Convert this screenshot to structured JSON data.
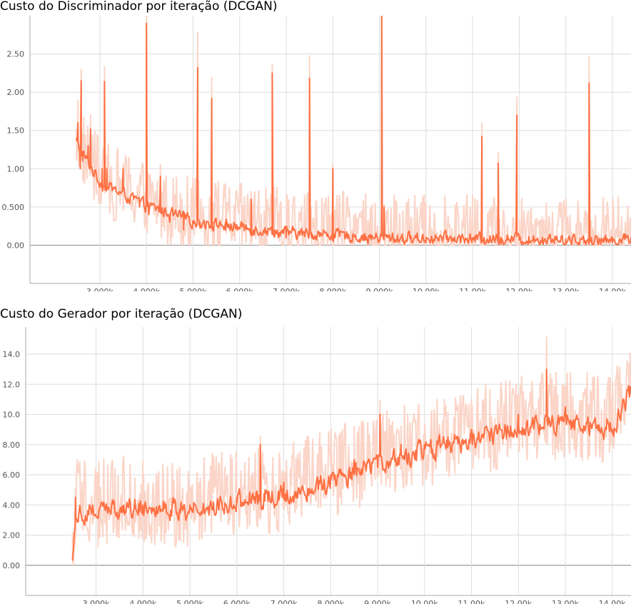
{
  "chart_data": [
    {
      "type": "line",
      "title": "Custo do Discriminador por iteração (DCGAN)",
      "xlabel": "",
      "ylabel": "",
      "xlim": [
        1500,
        14400
      ],
      "ylim": [
        -0.5,
        3.0
      ],
      "x_ticks": [
        3000,
        4000,
        5000,
        6000,
        7000,
        8000,
        9000,
        10000,
        11000,
        12000,
        13000,
        14000
      ],
      "x_tick_labels": [
        "3.000k",
        "4.000k",
        "5.000k",
        "6.000k",
        "7.000k",
        "8.000k",
        "9.000k",
        "10.00k",
        "11.00k",
        "12.00k",
        "13.00k",
        "14.00k"
      ],
      "y_ticks": [
        0,
        0.5,
        1.0,
        1.5,
        2.0,
        2.5
      ],
      "y_tick_labels": [
        "0.00",
        "0.500",
        "1.00",
        "1.50",
        "2.00",
        "2.50"
      ],
      "colors": {
        "smoothed": "#ff7043",
        "raw": "#fbd5c8",
        "grid": "#dddddd",
        "zero": "#999999"
      },
      "x_start": 2500,
      "x_end": 14400,
      "end_marker": false,
      "smooth": {
        "base": [
          [
            2500,
            1.3
          ],
          [
            3000,
            0.8
          ],
          [
            4000,
            0.5
          ],
          [
            5000,
            0.3
          ],
          [
            6000,
            0.22
          ],
          [
            7000,
            0.15
          ],
          [
            8000,
            0.12
          ],
          [
            9000,
            0.08
          ],
          [
            10000,
            0.08
          ],
          [
            11000,
            0.07
          ],
          [
            12000,
            0.07
          ],
          [
            13000,
            0.06
          ],
          [
            14000,
            0.05
          ],
          [
            14400,
            0.08
          ]
        ],
        "noise": 0.12,
        "floor": 0.01
      },
      "raw": {
        "noise": 0.5,
        "floor": 0
      },
      "series": [
        {
          "name": "smoothed",
          "points": [
            [
              2500,
              1.4
            ],
            [
              2530,
              1.6
            ],
            [
              2580,
              1.0
            ],
            [
              2600,
              2.15
            ],
            [
              2630,
              1.1
            ],
            [
              2750,
              1.3
            ],
            [
              2800,
              1.52
            ],
            [
              3050,
              1.0
            ],
            [
              3100,
              2.14
            ],
            [
              3150,
              1.0
            ],
            [
              3500,
              1.0
            ],
            [
              3850,
              0.5
            ],
            [
              4000,
              2.9
            ],
            [
              4050,
              0.4
            ],
            [
              4300,
              0.9
            ],
            [
              4500,
              0.3
            ],
            [
              4800,
              0.2
            ],
            [
              5100,
              2.32
            ],
            [
              5150,
              0.3
            ],
            [
              5400,
              1.92
            ],
            [
              5450,
              0.3
            ],
            [
              5700,
              0.2
            ],
            [
              6250,
              0.6
            ],
            [
              6300,
              0.2
            ],
            [
              6700,
              2.25
            ],
            [
              6750,
              0.2
            ],
            [
              7000,
              0.1
            ],
            [
              7500,
              2.18
            ],
            [
              7550,
              0.15
            ],
            [
              8000,
              1.0
            ],
            [
              8050,
              0.1
            ],
            [
              8500,
              0.08
            ],
            [
              9000,
              0.05
            ],
            [
              9050,
              3.0
            ],
            [
              9100,
              0.5
            ],
            [
              9200,
              0.1
            ],
            [
              9500,
              0.05
            ],
            [
              10000,
              0.1
            ],
            [
              11000,
              0.08
            ],
            [
              11200,
              1.42
            ],
            [
              11250,
              0.1
            ],
            [
              11550,
              1.07
            ],
            [
              11600,
              0.1
            ],
            [
              11950,
              1.7
            ],
            [
              12000,
              0.1
            ],
            [
              12500,
              0.1
            ],
            [
              13000,
              0.08
            ],
            [
              13500,
              2.12
            ],
            [
              13550,
              0.1
            ],
            [
              14000,
              0.03
            ],
            [
              14400,
              0.08
            ]
          ]
        }
      ]
    },
    {
      "type": "line",
      "title": "Custo do Gerador por iteração (DCGAN)",
      "xlabel": "",
      "ylabel": "",
      "xlim": [
        1500,
        14400
      ],
      "ylim": [
        -2.0,
        15.8
      ],
      "x_ticks": [
        3000,
        4000,
        5000,
        6000,
        7000,
        8000,
        9000,
        10000,
        11000,
        12000,
        13000,
        14000
      ],
      "x_tick_labels": [
        "3.000k",
        "4.000k",
        "5.000k",
        "6.000k",
        "7.000k",
        "8.000k",
        "9.000k",
        "10.00k",
        "11.00k",
        "12.00k",
        "13.00k",
        "14.00k"
      ],
      "y_ticks": [
        0,
        2,
        4,
        6,
        8,
        10,
        12,
        14
      ],
      "y_tick_labels": [
        "0.00",
        "2.00",
        "4.00",
        "6.00",
        "8.00",
        "10.0",
        "12.0",
        "14.0"
      ],
      "colors": {
        "smoothed": "#ff7043",
        "raw": "#fbd5c8",
        "grid": "#dddddd",
        "zero": "#999999"
      },
      "x_start": 2500,
      "x_end": 14400,
      "end_marker": true,
      "smooth": {
        "base": [
          [
            2500,
            0.5
          ],
          [
            2550,
            3.5
          ],
          [
            3000,
            3.5
          ],
          [
            4000,
            3.8
          ],
          [
            5000,
            3.5
          ],
          [
            6000,
            4.2
          ],
          [
            7000,
            4.5
          ],
          [
            8000,
            5.5
          ],
          [
            9000,
            6.5
          ],
          [
            10000,
            7.5
          ],
          [
            11000,
            8.2
          ],
          [
            12000,
            9.0
          ],
          [
            13000,
            9.5
          ],
          [
            14000,
            9.0
          ],
          [
            14400,
            11.7
          ]
        ],
        "noise": 1.1,
        "floor": 0.3
      },
      "raw": {
        "noise": 3.0,
        "floor": 0
      },
      "series": [
        {
          "name": "smoothed",
          "points": [
            [
              2500,
              0.5
            ],
            [
              2560,
              4.5
            ],
            [
              3000,
              3.2
            ],
            [
              3500,
              3.5
            ],
            [
              4000,
              4.0
            ],
            [
              4500,
              3.5
            ],
            [
              5000,
              4.0
            ],
            [
              5500,
              4.2
            ],
            [
              6000,
              4.5
            ],
            [
              6500,
              8.0
            ],
            [
              6600,
              5.0
            ],
            [
              7000,
              5.5
            ],
            [
              7500,
              4.5
            ],
            [
              8000,
              6.0
            ],
            [
              8500,
              7.0
            ],
            [
              9000,
              6.5
            ],
            [
              9050,
              10.0
            ],
            [
              9500,
              8.0
            ],
            [
              10000,
              8.0
            ],
            [
              10500,
              8.5
            ],
            [
              11000,
              9.0
            ],
            [
              11500,
              9.0
            ],
            [
              12000,
              10.0
            ],
            [
              12600,
              13.0
            ],
            [
              13000,
              10.5
            ],
            [
              13500,
              9.0
            ],
            [
              14000,
              9.0
            ],
            [
              14350,
              11.7
            ]
          ]
        }
      ]
    }
  ]
}
